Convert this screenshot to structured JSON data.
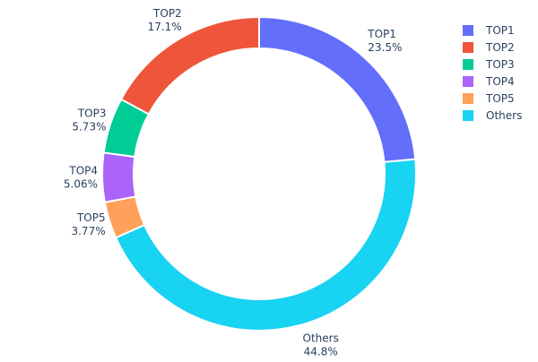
{
  "chart_data": {
    "type": "pie",
    "hole": true,
    "sort_order_clockwise_from_top": [
      "TOP1",
      "Others",
      "TOP5",
      "TOP4",
      "TOP3",
      "TOP2"
    ],
    "slices": [
      {
        "label": "TOP1",
        "value": 23.5,
        "value_text": "23.5%",
        "color": "#636efa"
      },
      {
        "label": "TOP2",
        "value": 17.1,
        "value_text": "17.1%",
        "color": "#ef553b"
      },
      {
        "label": "TOP3",
        "value": 5.73,
        "value_text": "5.73%",
        "color": "#00cc96"
      },
      {
        "label": "TOP4",
        "value": 5.06,
        "value_text": "5.06%",
        "color": "#ab63fa"
      },
      {
        "label": "TOP5",
        "value": 3.77,
        "value_text": "3.77%",
        "color": "#ffa15a"
      },
      {
        "label": "Others",
        "value": 44.8,
        "value_text": "44.8%",
        "color": "#19d3f3"
      }
    ],
    "legend_placement": "top-right"
  }
}
